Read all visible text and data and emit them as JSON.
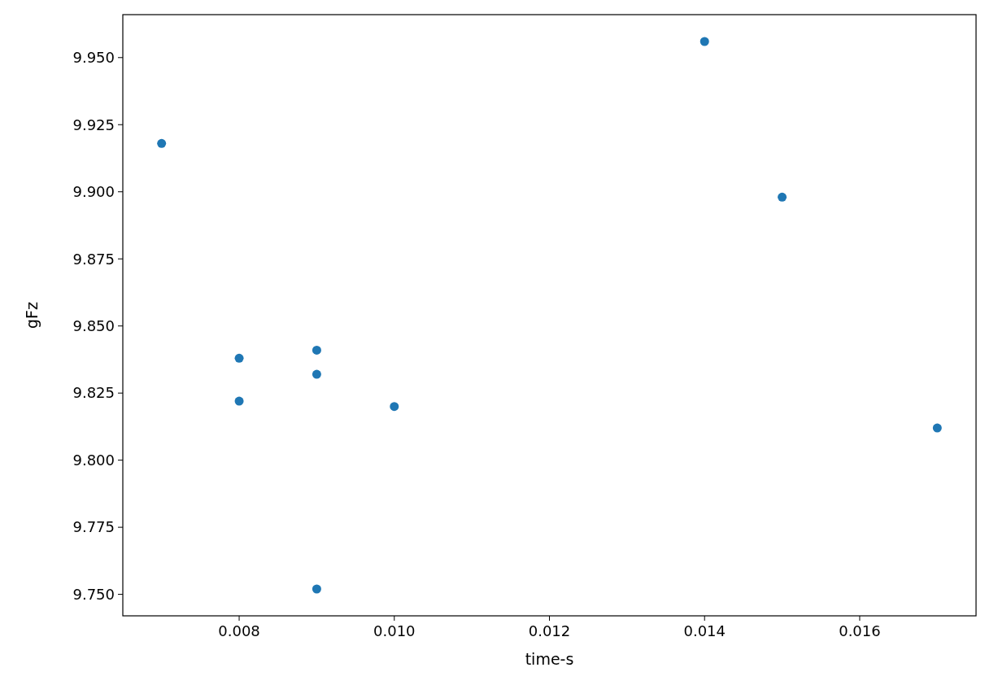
{
  "chart_data": {
    "type": "scatter",
    "xlabel": "time-s",
    "ylabel": "gFz",
    "x": [
      0.007,
      0.014,
      0.015,
      0.008,
      0.009,
      0.009,
      0.008,
      0.01,
      0.017,
      0.009
    ],
    "series": [
      {
        "color": "#1f77b4",
        "values": [
          9.918,
          9.956,
          9.898,
          9.838,
          9.841,
          9.832,
          9.822,
          9.82,
          9.812,
          9.752
        ]
      }
    ],
    "xlim": [
      0.0065,
      0.0175
    ],
    "xticks": [
      {
        "value": 0.008,
        "label": "0.008"
      },
      {
        "value": 0.01,
        "label": "0.010"
      },
      {
        "value": 0.012,
        "label": "0.012"
      },
      {
        "value": 0.014,
        "label": "0.014"
      },
      {
        "value": 0.016,
        "label": "0.016"
      }
    ],
    "ylim": [
      9.742,
      9.966
    ],
    "yticks": [
      {
        "value": 9.75,
        "label": "9.750"
      },
      {
        "value": 9.775,
        "label": "9.775"
      },
      {
        "value": 9.8,
        "label": "9.800"
      },
      {
        "value": 9.825,
        "label": "9.825"
      },
      {
        "value": 9.85,
        "label": "9.850"
      },
      {
        "value": 9.875,
        "label": "9.875"
      },
      {
        "value": 9.9,
        "label": "9.900"
      },
      {
        "value": 9.925,
        "label": "9.925"
      },
      {
        "value": 9.95,
        "label": "9.950"
      }
    ],
    "grid": false,
    "marker": "circle"
  }
}
